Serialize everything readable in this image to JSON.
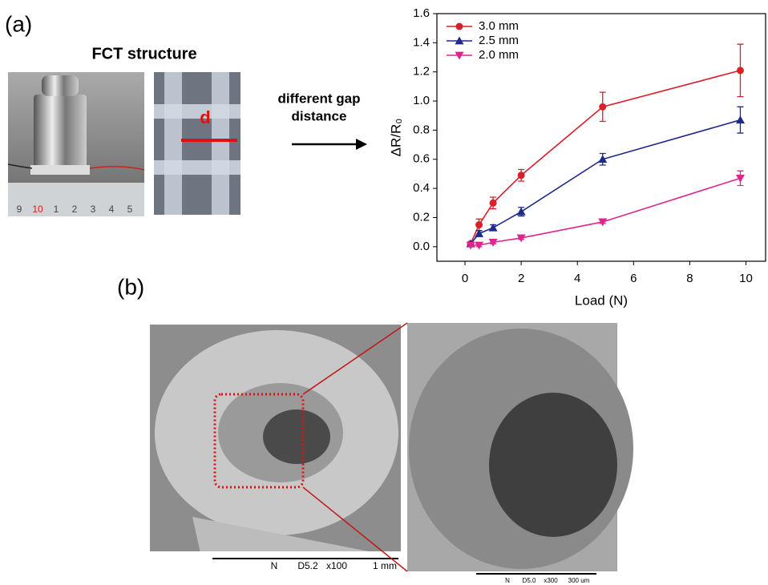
{
  "chart_data": {
    "type": "line",
    "x_label": "Load (N)",
    "y_label": "ΔR/R₀",
    "x": [
      0.2,
      0.5,
      1,
      2,
      4.9,
      9.8
    ],
    "series": [
      {
        "name": "3.0 mm",
        "color": "#d9202a",
        "marker": "circle",
        "values": [
          0.02,
          0.15,
          0.3,
          0.49,
          0.96,
          1.21
        ],
        "errors": [
          0.01,
          0.04,
          0.04,
          0.04,
          0.1,
          0.18
        ]
      },
      {
        "name": "2.5 mm",
        "color": "#1f2a8c",
        "marker": "triangle-up",
        "values": [
          0.02,
          0.09,
          0.13,
          0.24,
          0.6,
          0.87
        ],
        "errors": [
          0.01,
          0.02,
          0.02,
          0.03,
          0.04,
          0.09
        ]
      },
      {
        "name": "2.0 mm",
        "color": "#e0258e",
        "marker": "triangle-down",
        "values": [
          0.01,
          0.01,
          0.03,
          0.06,
          0.17,
          0.47
        ],
        "errors": [
          0.01,
          0.01,
          0.01,
          0.01,
          0.01,
          0.05
        ]
      }
    ],
    "xlim": [
      -1,
      10.7
    ],
    "ylim": [
      -0.1,
      1.6
    ],
    "xticks": [
      0,
      2,
      4,
      6,
      8,
      10
    ],
    "yticks": [
      {
        "value": 0,
        "label": "0.0"
      },
      0.2,
      0.4,
      0.6,
      0.8,
      {
        "value": 1,
        "label": "1.0"
      },
      1.2,
      1.4,
      1.6
    ],
    "legend": "upper left",
    "grid": false
  },
  "figure": {
    "panel_a": "(a)",
    "panel_b": "(b)",
    "photo_title": "FCT structure",
    "gap_label": "d",
    "arrow_text": [
      "different gap",
      "distance"
    ],
    "ruler": [
      "9",
      "10",
      "1",
      "2",
      "3",
      "4",
      "5"
    ],
    "sem_left_scale": [
      "N",
      "D5.2",
      "x100",
      "1 mm"
    ],
    "sem_right_scale": [
      "N",
      "D5.0",
      "x300",
      "300 um"
    ]
  }
}
